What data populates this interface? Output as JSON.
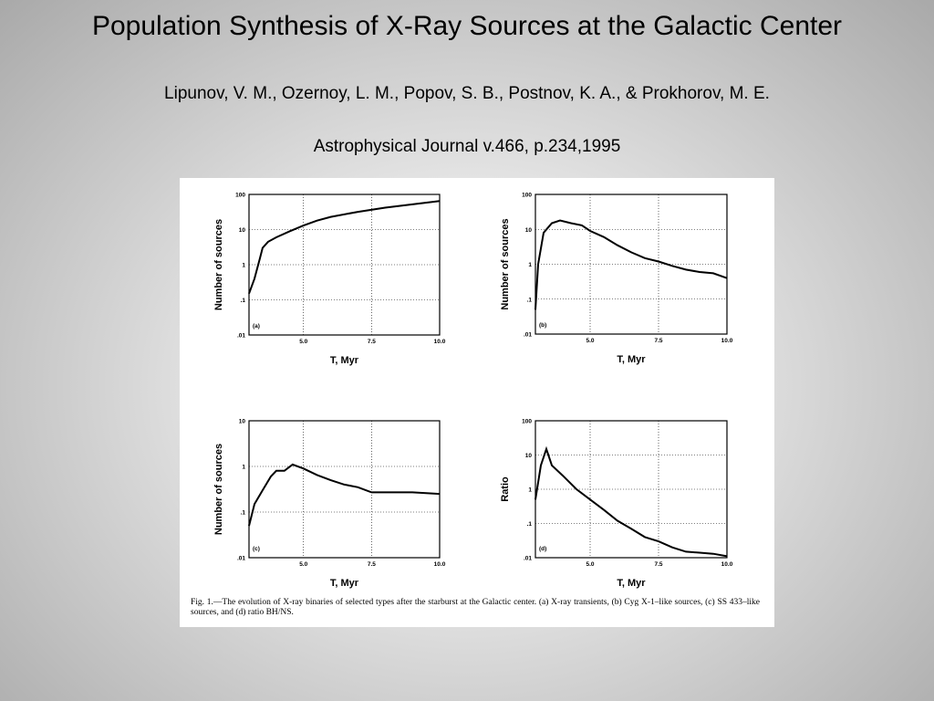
{
  "title": "Population Synthesis of X-Ray Sources at the Galactic Center",
  "authors": "Lipunov, V. M., Ozernoy, L. M., Popov, S. B., Postnov, K. A., & Prokhorov, M. E.",
  "citation": "Astrophysical Journal v.466, p.234,1995",
  "caption": "Fig. 1.—The evolution of X-ray binaries of selected types after the starburst at the Galactic center. (a) X-ray transients, (b) Cyg X-1–like sources, (c) SS 433–like sources, and (d) ratio BH/NS.",
  "chart_data": [
    {
      "type": "line",
      "panel_label": "(a)",
      "xlabel": "T, Myr",
      "ylabel": "Number of sources",
      "log_y": true,
      "grid": true,
      "color": "#000000",
      "x": [
        3.0,
        3.2,
        3.4,
        3.5,
        3.7,
        4.0,
        4.5,
        5.0,
        5.5,
        6.0,
        7.0,
        8.0,
        9.0,
        10.0
      ],
      "values": [
        0.15,
        0.4,
        1.5,
        3,
        4.5,
        6,
        9,
        13,
        18,
        23,
        32,
        42,
        52,
        65
      ],
      "xlim": [
        3,
        10
      ],
      "ylim": [
        0.01,
        100
      ],
      "xticks": [
        {
          "value": 5,
          "label": "5.0"
        },
        {
          "value": 7.5,
          "label": "7.5"
        },
        {
          "value": 10,
          "label": "10.0"
        }
      ],
      "yticks": [
        {
          "value": 0.01,
          "label": ".01"
        },
        {
          "value": 0.1,
          "label": ".1"
        },
        1,
        10,
        100
      ]
    },
    {
      "type": "line",
      "panel_label": "(b)",
      "xlabel": "T, Myr",
      "ylabel": "Number of sources",
      "log_y": true,
      "grid": true,
      "color": "#000000",
      "x": [
        3.0,
        3.1,
        3.3,
        3.6,
        3.9,
        4.3,
        4.7,
        5.0,
        5.5,
        6.0,
        6.5,
        7.0,
        7.5,
        8.0,
        8.5,
        9.0,
        9.5,
        10.0
      ],
      "values": [
        0.05,
        1,
        8,
        15,
        18,
        15,
        13,
        9,
        6,
        3.5,
        2.2,
        1.5,
        1.2,
        0.9,
        0.7,
        0.6,
        0.55,
        0.4
      ],
      "xlim": [
        3,
        10
      ],
      "ylim": [
        0.01,
        100
      ],
      "xticks": [
        {
          "value": 5,
          "label": "5.0"
        },
        {
          "value": 7.5,
          "label": "7.5"
        },
        {
          "value": 10,
          "label": "10.0"
        }
      ],
      "yticks": [
        {
          "value": 0.01,
          "label": ".01"
        },
        {
          "value": 0.1,
          "label": ".1"
        },
        1,
        10,
        100
      ]
    },
    {
      "type": "line",
      "panel_label": "(c)",
      "xlabel": "T, Myr",
      "ylabel": "Number of sources",
      "log_y": true,
      "grid": true,
      "color": "#000000",
      "x": [
        3.0,
        3.2,
        3.5,
        3.8,
        4.0,
        4.3,
        4.6,
        5.0,
        5.5,
        6.0,
        6.5,
        7.0,
        7.5,
        8.0,
        9.0,
        10.0
      ],
      "values": [
        0.05,
        0.15,
        0.3,
        0.6,
        0.8,
        0.8,
        1.1,
        0.9,
        0.65,
        0.5,
        0.4,
        0.35,
        0.27,
        0.27,
        0.27,
        0.25
      ],
      "xlim": [
        3,
        10
      ],
      "ylim": [
        0.01,
        10
      ],
      "xticks": [
        {
          "value": 5,
          "label": "5.0"
        },
        {
          "value": 7.5,
          "label": "7.5"
        },
        {
          "value": 10,
          "label": "10.0"
        }
      ],
      "yticks": [
        {
          "value": 0.01,
          "label": ".01"
        },
        {
          "value": 0.1,
          "label": ".1"
        },
        1,
        10
      ]
    },
    {
      "type": "line",
      "panel_label": "(d)",
      "xlabel": "T, Myr",
      "ylabel": "Ratio",
      "log_y": true,
      "grid": true,
      "color": "#000000",
      "x": [
        3.0,
        3.2,
        3.4,
        3.6,
        4.0,
        4.5,
        5.0,
        5.5,
        6.0,
        6.5,
        7.0,
        7.5,
        8.0,
        8.5,
        9.0,
        9.5,
        10.0
      ],
      "values": [
        0.5,
        5,
        15,
        5,
        2.5,
        1,
        0.5,
        0.25,
        0.12,
        0.07,
        0.04,
        0.03,
        0.02,
        0.015,
        0.014,
        0.013,
        0.011
      ],
      "xlim": [
        3,
        10
      ],
      "ylim": [
        0.01,
        100
      ],
      "xticks": [
        {
          "value": 5,
          "label": "5.0"
        },
        {
          "value": 7.5,
          "label": "7.5"
        },
        {
          "value": 10,
          "label": "10.0"
        }
      ],
      "yticks": [
        {
          "value": 0.01,
          "label": ".01"
        },
        {
          "value": 0.1,
          "label": ".1"
        },
        1,
        10,
        100
      ]
    }
  ]
}
